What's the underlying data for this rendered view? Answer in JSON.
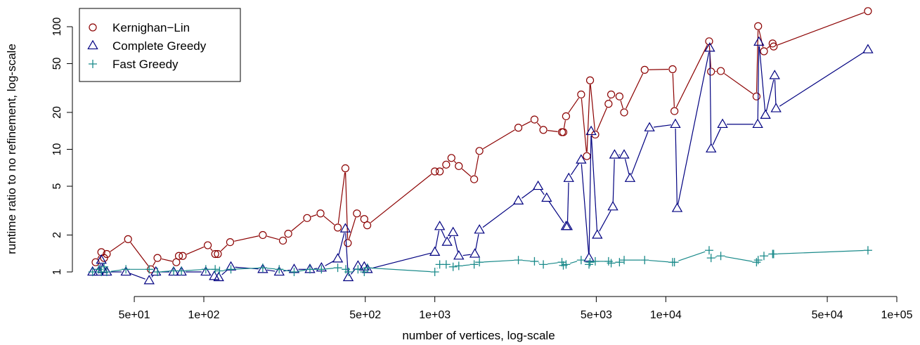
{
  "chart_data": {
    "type": "scatter",
    "x_scale": "log",
    "y_scale": "log",
    "xlabel": "number of vertices, log-scale",
    "ylabel": "runtime ratio to no refinement, log-scale",
    "xlim": [
      20,
      100000
    ],
    "ylim": [
      0.85,
      135
    ],
    "x_ticks": [
      {
        "value": 50,
        "label": "5e+01"
      },
      {
        "value": 100,
        "label": "1e+02"
      },
      {
        "value": 500,
        "label": "5e+02"
      },
      {
        "value": 1000,
        "label": "1e+03"
      },
      {
        "value": 5000,
        "label": "5e+03"
      },
      {
        "value": 10000,
        "label": "1e+04"
      },
      {
        "value": 50000,
        "label": "5e+04"
      },
      {
        "value": 100000,
        "label": "1e+05"
      }
    ],
    "y_ticks": [
      {
        "value": 1,
        "label": "1"
      },
      {
        "value": 2,
        "label": "2"
      },
      {
        "value": 5,
        "label": "5"
      },
      {
        "value": 10,
        "label": "10"
      },
      {
        "value": 20,
        "label": "20"
      },
      {
        "value": 50,
        "label": "50"
      },
      {
        "value": 100,
        "label": "100"
      }
    ],
    "legend_position": "top-left",
    "series": [
      {
        "name": "Kernighan−Lin",
        "color": "#8b0000",
        "marker": "circle",
        "points": [
          [
            34,
            1.2
          ],
          [
            36,
            1.45
          ],
          [
            37,
            1.3
          ],
          [
            38,
            1.4
          ],
          [
            47,
            1.85
          ],
          [
            59,
            1.05
          ],
          [
            63,
            1.3
          ],
          [
            76,
            1.2
          ],
          [
            78,
            1.35
          ],
          [
            81,
            1.35
          ],
          [
            104,
            1.65
          ],
          [
            112,
            1.4
          ],
          [
            115,
            1.4
          ],
          [
            130,
            1.75
          ],
          [
            180,
            2.0
          ],
          [
            220,
            1.8
          ],
          [
            232,
            2.05
          ],
          [
            280,
            2.75
          ],
          [
            320,
            3.0
          ],
          [
            380,
            2.3
          ],
          [
            410,
            7.0
          ],
          [
            420,
            1.72
          ],
          [
            460,
            3.0
          ],
          [
            495,
            2.7
          ],
          [
            510,
            2.4
          ],
          [
            1000,
            6.6
          ],
          [
            1050,
            6.6
          ],
          [
            1120,
            7.5
          ],
          [
            1180,
            8.5
          ],
          [
            1270,
            7.3
          ],
          [
            1480,
            5.7
          ],
          [
            1560,
            9.7
          ],
          [
            2300,
            15.0
          ],
          [
            2700,
            17.5
          ],
          [
            2950,
            14.4
          ],
          [
            3550,
            13.8
          ],
          [
            3600,
            13.8
          ],
          [
            3700,
            18.6
          ],
          [
            4300,
            28.0
          ],
          [
            4550,
            8.8
          ],
          [
            4700,
            36.5
          ],
          [
            4950,
            13.2
          ],
          [
            5650,
            23.5
          ],
          [
            5800,
            28.0
          ],
          [
            6300,
            27.0
          ],
          [
            6600,
            20.0
          ],
          [
            8100,
            44.5
          ],
          [
            10700,
            45.0
          ],
          [
            10900,
            20.5
          ],
          [
            15400,
            76.0
          ],
          [
            15700,
            43.0
          ],
          [
            17300,
            43.5
          ],
          [
            24700,
            27.0
          ],
          [
            25100,
            101.0
          ],
          [
            26600,
            63.0
          ],
          [
            29000,
            73.0
          ],
          [
            29300,
            69.0
          ],
          [
            75000,
            134.0
          ]
        ]
      },
      {
        "name": "Complete Greedy",
        "color": "#000080",
        "marker": "triangle",
        "points": [
          [
            33,
            1.0
          ],
          [
            35,
            1.0
          ],
          [
            36,
            1.25
          ],
          [
            36.5,
            1.05
          ],
          [
            38,
            1.0
          ],
          [
            46,
            1.0
          ],
          [
            58,
            0.85
          ],
          [
            62,
            1.0
          ],
          [
            74,
            1.0
          ],
          [
            80,
            1.0
          ],
          [
            102,
            1.0
          ],
          [
            111,
            0.92
          ],
          [
            116,
            0.9
          ],
          [
            131,
            1.1
          ],
          [
            180,
            1.05
          ],
          [
            212,
            1.0
          ],
          [
            246,
            1.05
          ],
          [
            288,
            1.05
          ],
          [
            323,
            1.08
          ],
          [
            380,
            1.28
          ],
          [
            410,
            2.25
          ],
          [
            422,
            0.9
          ],
          [
            465,
            1.12
          ],
          [
            495,
            1.1
          ],
          [
            511,
            1.05
          ],
          [
            1000,
            1.45
          ],
          [
            1050,
            2.35
          ],
          [
            1130,
            1.75
          ],
          [
            1200,
            2.1
          ],
          [
            1270,
            1.35
          ],
          [
            1490,
            1.4
          ],
          [
            1560,
            2.2
          ],
          [
            2300,
            3.8
          ],
          [
            2800,
            5.0
          ],
          [
            3050,
            4.0
          ],
          [
            3700,
            2.35
          ],
          [
            3750,
            2.35
          ],
          [
            3800,
            5.8
          ],
          [
            4300,
            8.2
          ],
          [
            4650,
            1.3
          ],
          [
            4750,
            14.0
          ],
          [
            5050,
            2.0
          ],
          [
            5900,
            3.4
          ],
          [
            6000,
            9.0
          ],
          [
            6600,
            9.0
          ],
          [
            7000,
            5.8
          ],
          [
            8500,
            15.0
          ],
          [
            11000,
            16.0
          ],
          [
            11200,
            3.3
          ],
          [
            15500,
            67.0
          ],
          [
            15700,
            10.1
          ],
          [
            17600,
            16.0
          ],
          [
            25000,
            16.0
          ],
          [
            25300,
            75.0
          ],
          [
            27000,
            19.0
          ],
          [
            29600,
            40.0
          ],
          [
            30000,
            21.5
          ],
          [
            75000,
            65.0
          ]
        ]
      },
      {
        "name": "Fast Greedy",
        "color": "#1a8a8a",
        "marker": "plus",
        "points": [
          [
            33,
            1.0
          ],
          [
            35,
            1.05
          ],
          [
            36,
            1.0
          ],
          [
            37,
            1.1
          ],
          [
            38,
            1.0
          ],
          [
            46,
            1.05
          ],
          [
            58,
            1.05
          ],
          [
            63,
            1.0
          ],
          [
            74,
            1.02
          ],
          [
            80,
            1.02
          ],
          [
            102,
            1.05
          ],
          [
            112,
            1.05
          ],
          [
            117,
            1.02
          ],
          [
            131,
            1.05
          ],
          [
            180,
            1.08
          ],
          [
            212,
            1.05
          ],
          [
            246,
            1.0
          ],
          [
            288,
            1.05
          ],
          [
            323,
            1.05
          ],
          [
            380,
            1.08
          ],
          [
            412,
            1.05
          ],
          [
            424,
            1.0
          ],
          [
            465,
            1.05
          ],
          [
            495,
            1.0
          ],
          [
            511,
            1.08
          ],
          [
            1000,
            1.0
          ],
          [
            1050,
            1.15
          ],
          [
            1120,
            1.15
          ],
          [
            1200,
            1.1
          ],
          [
            1270,
            1.12
          ],
          [
            1480,
            1.15
          ],
          [
            1560,
            1.2
          ],
          [
            2300,
            1.25
          ],
          [
            2700,
            1.22
          ],
          [
            2950,
            1.15
          ],
          [
            3550,
            1.2
          ],
          [
            3600,
            1.13
          ],
          [
            3700,
            1.15
          ],
          [
            4300,
            1.25
          ],
          [
            4650,
            1.15
          ],
          [
            4700,
            1.2
          ],
          [
            4950,
            1.22
          ],
          [
            5650,
            1.22
          ],
          [
            5800,
            1.18
          ],
          [
            6300,
            1.2
          ],
          [
            6600,
            1.25
          ],
          [
            8100,
            1.25
          ],
          [
            10700,
            1.2
          ],
          [
            10900,
            1.2
          ],
          [
            15400,
            1.5
          ],
          [
            15700,
            1.3
          ],
          [
            17300,
            1.35
          ],
          [
            24700,
            1.2
          ],
          [
            25100,
            1.25
          ],
          [
            26600,
            1.35
          ],
          [
            29000,
            1.4
          ],
          [
            29300,
            1.4
          ],
          [
            75000,
            1.5
          ]
        ]
      }
    ]
  }
}
